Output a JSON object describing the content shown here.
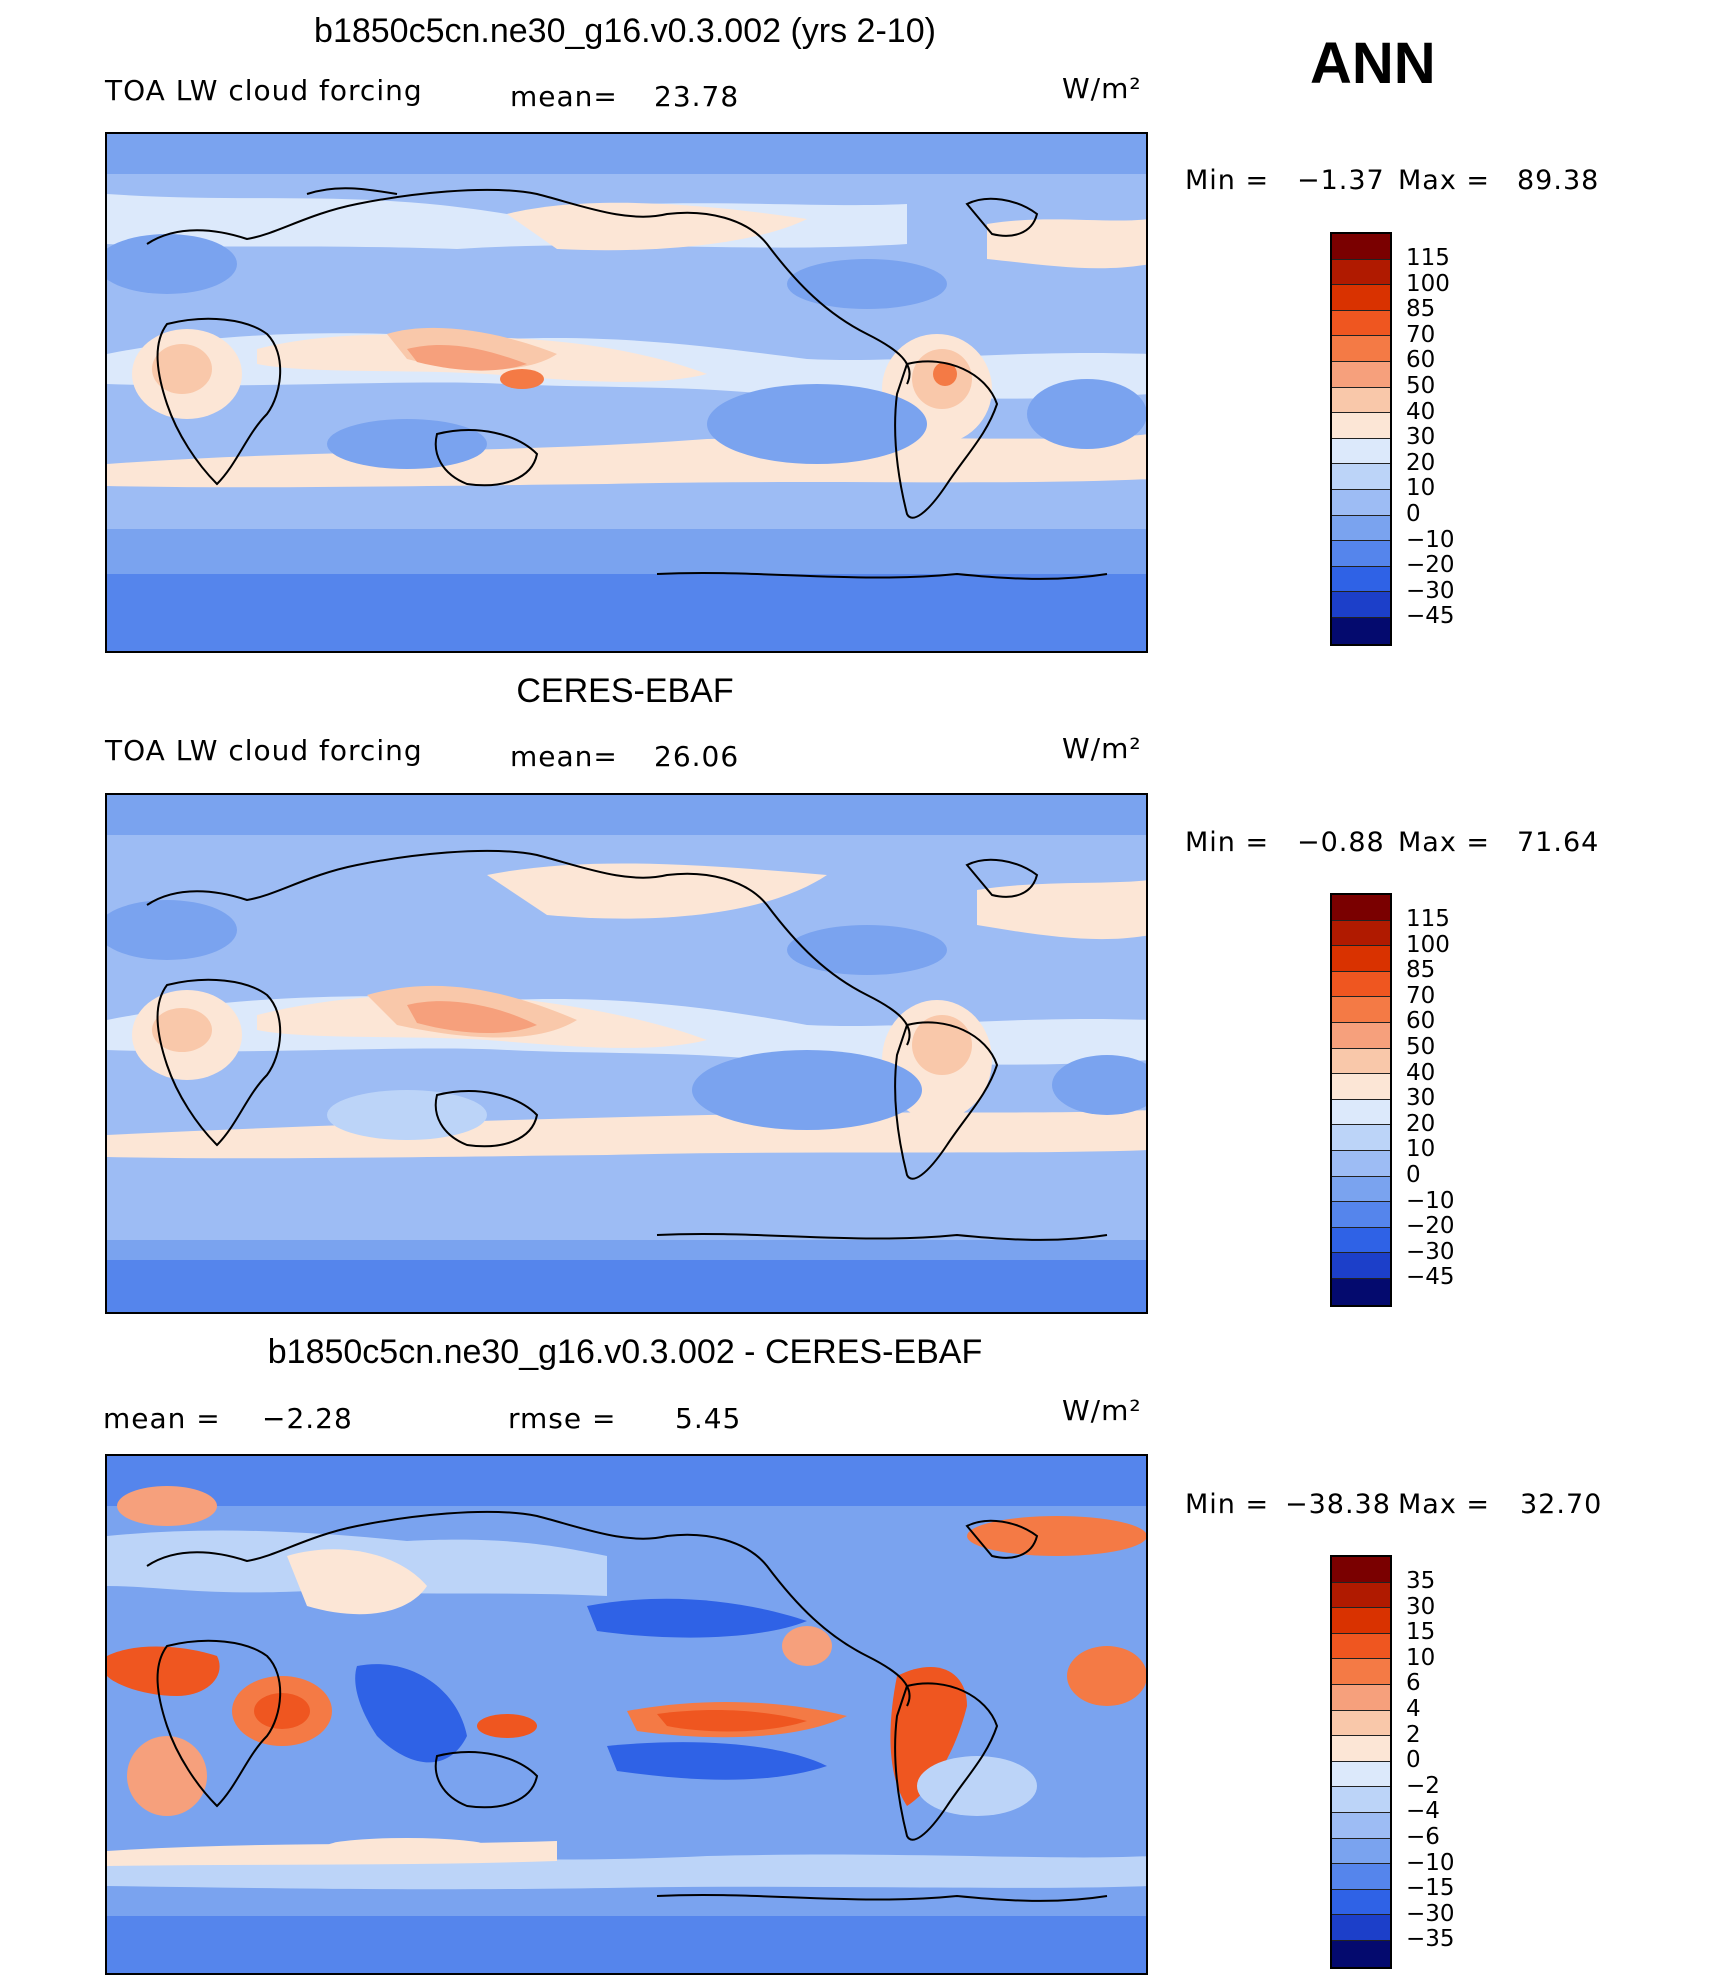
{
  "season": "ANN",
  "panels": [
    {
      "title": "b1850c5cn.ne30_g16.v0.3.002 (yrs 2-10)",
      "left_text": "TOA LW cloud forcing",
      "mid_label": "mean=",
      "mid_value": "23.78",
      "units": "W/m²",
      "min_label": "Min =",
      "min_value": "−1.37",
      "max_label": "Max =",
      "max_value": "89.38",
      "levels": [
        "115",
        "100",
        "85",
        "70",
        "60",
        "50",
        "40",
        "30",
        "20",
        "10",
        "0",
        "−10",
        "−20",
        "−30",
        "−45"
      ]
    },
    {
      "title": "CERES-EBAF",
      "left_text": "TOA LW cloud forcing",
      "mid_label": "mean=",
      "mid_value": "26.06",
      "units": "W/m²",
      "min_label": "Min =",
      "min_value": "−0.88",
      "max_label": "Max =",
      "max_value": "71.64",
      "levels": [
        "115",
        "100",
        "85",
        "70",
        "60",
        "50",
        "40",
        "30",
        "20",
        "10",
        "0",
        "−10",
        "−20",
        "−30",
        "−45"
      ]
    },
    {
      "title": "b1850c5cn.ne30_g16.v0.3.002 - CERES-EBAF",
      "left_label": "mean =",
      "left_value": "−2.28",
      "mid_label": "rmse =",
      "mid_value": "5.45",
      "units": "W/m²",
      "min_label": "Min =",
      "min_value": "−38.38",
      "max_label": "Max =",
      "max_value": "32.70",
      "levels": [
        "35",
        "30",
        "15",
        "10",
        "6",
        "4",
        "2",
        "0",
        "−2",
        "−4",
        "−6",
        "−10",
        "−15",
        "−30",
        "−35"
      ]
    }
  ],
  "colors": {
    "scale": [
      "#7a0000",
      "#b01a00",
      "#d93200",
      "#ef5620",
      "#f47a45",
      "#f6a07c",
      "#f9c8aa",
      "#fce6d6",
      "#dce9fb",
      "#bcd4f8",
      "#9dbcf4",
      "#7aa3ef",
      "#5585ec",
      "#2f62e6",
      "#1c3fc9",
      "#0c1f97",
      "#040a6e"
    ]
  },
  "chart_data": [
    {
      "type": "heatmap",
      "title": "b1850c5cn.ne30_g16.v0.3.002 (yrs 2-10)",
      "mean": 23.78,
      "min": -1.37,
      "max": 89.38,
      "contour_levels": [
        115,
        100,
        85,
        70,
        60,
        50,
        40,
        30,
        20,
        10,
        0,
        -10,
        -20,
        -30,
        -45
      ]
    },
    {
      "type": "heatmap",
      "title": "CERES-EBAF",
      "mean": 26.06,
      "min": -0.88,
      "max": 71.64,
      "contour_levels": [
        115,
        100,
        85,
        70,
        60,
        50,
        40,
        30,
        20,
        10,
        0,
        -10,
        -20,
        -30,
        -45
      ]
    },
    {
      "type": "heatmap",
      "title": "b1850c5cn.ne30_g16.v0.3.002 - CERES-EBAF",
      "mean": -2.28,
      "rmse": 5.45,
      "min": -38.38,
      "max": 32.7,
      "contour_levels": [
        35,
        30,
        15,
        10,
        6,
        4,
        2,
        0,
        -2,
        -4,
        -6,
        -10,
        -15,
        -30,
        -35
      ]
    }
  ]
}
